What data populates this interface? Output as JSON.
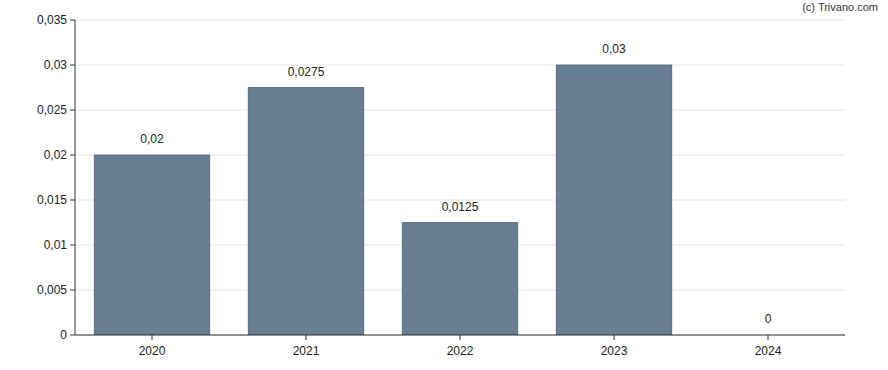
{
  "chart_data": {
    "type": "bar",
    "annotations": [
      "(c) Trivano.com"
    ],
    "categories": [
      "2020",
      "2021",
      "2022",
      "2023",
      "2024"
    ],
    "values": [
      0.02,
      0.0275,
      0.0125,
      0.03,
      0
    ],
    "value_labels": [
      "0,02",
      "0,0275",
      "0,0125",
      "0,03",
      "0"
    ],
    "data_labels": true,
    "color": "#687f93",
    "ylim": [
      0,
      0.035
    ],
    "yticks": [
      0,
      {
        "value": 0.005,
        "label": "0,005"
      },
      {
        "value": 0.01,
        "label": "0,01"
      },
      {
        "value": 0.015,
        "label": "0,015"
      },
      {
        "value": 0.02,
        "label": "0,02"
      },
      {
        "value": 0.025,
        "label": "0,025"
      },
      {
        "value": 0.03,
        "label": "0,03"
      },
      {
        "value": 0.035,
        "label": "0,035"
      }
    ],
    "grid": true
  }
}
